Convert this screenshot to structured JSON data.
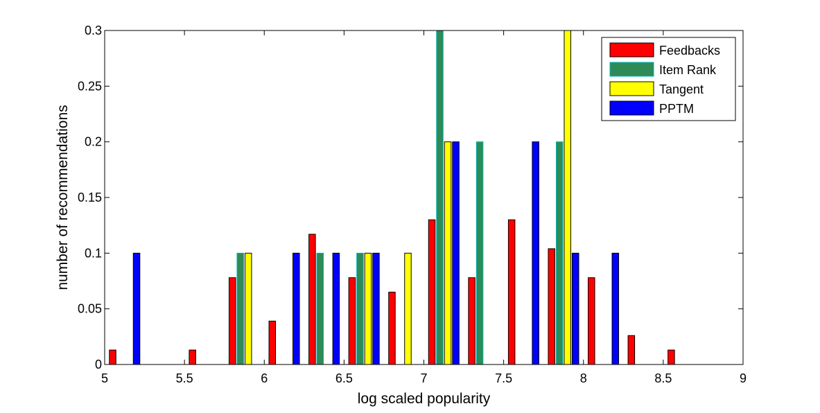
{
  "chart_data": {
    "type": "bar",
    "xlabel": "log scaled popularity",
    "ylabel": "number of recommendations",
    "xlim": [
      5,
      9
    ],
    "ylim": [
      0,
      0.3
    ],
    "xticks": [
      "5",
      "5.5",
      "6",
      "6.5",
      "7",
      "7.5",
      "8",
      "8.5",
      "9"
    ],
    "yticks": [
      "0",
      "0.05",
      "0.1",
      "0.15",
      "0.2",
      "0.25",
      "0.3"
    ],
    "grid": false,
    "legend_position": "top-right",
    "bin_centers": [
      5.125,
      5.375,
      5.625,
      5.875,
      6.125,
      6.375,
      6.625,
      6.875,
      7.125,
      7.375,
      7.625,
      7.875,
      8.125,
      8.375,
      8.625,
      8.875
    ],
    "series": [
      {
        "name": "Feedbacks",
        "color": "#ff0000",
        "values": [
          0.013,
          0,
          0.013,
          0.078,
          0.039,
          0.117,
          0.078,
          0.065,
          0.13,
          0.078,
          0.13,
          0.104,
          0.078,
          0.026,
          0.013,
          0
        ]
      },
      {
        "name": "Item Rank",
        "color": "#2e8b57",
        "edge": "#00b3b3",
        "values": [
          0,
          0,
          0,
          0.1,
          0,
          0.1,
          0.1,
          0,
          0.3,
          0.2,
          0,
          0.2,
          0,
          0,
          0,
          0
        ]
      },
      {
        "name": "Tangent",
        "color": "#ffff00",
        "values": [
          0,
          0,
          0,
          0.1,
          0,
          0,
          0.1,
          0.1,
          0.2,
          0,
          0,
          0.3,
          0,
          0,
          0,
          0
        ]
      },
      {
        "name": "PPTM",
        "color": "#0000ff",
        "values": [
          0.1,
          0,
          0,
          0,
          0.1,
          0.1,
          0.1,
          0,
          0.2,
          0,
          0.2,
          0.1,
          0.1,
          0,
          0,
          0
        ]
      }
    ]
  }
}
